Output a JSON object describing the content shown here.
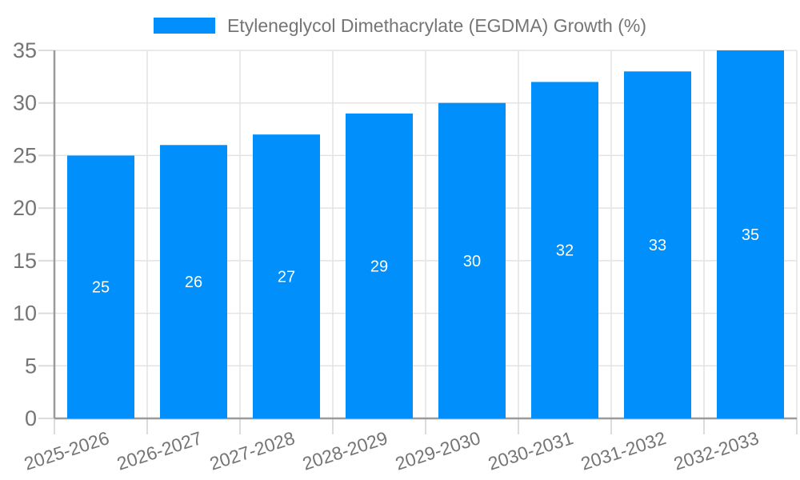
{
  "chart_data": {
    "type": "bar",
    "title": "",
    "legend": "Etyleneglycol Dimethacrylate (EGDMA) Growth (%)",
    "legend_position": "top-center",
    "categories": [
      "2025-2026",
      "2026-2027",
      "2027-2028",
      "2028-2029",
      "2029-2030",
      "2030-2031",
      "2031-2032",
      "2032-2033"
    ],
    "values": [
      25,
      26,
      27,
      29,
      30,
      32,
      33,
      35
    ],
    "xlabel": "",
    "ylabel": "",
    "ylim": [
      0,
      35
    ],
    "yticks": [
      0,
      5,
      10,
      15,
      20,
      25,
      30,
      35
    ],
    "grid": true,
    "x_label_rotation_deg": -18,
    "colors": {
      "bar": "#008ffb",
      "grid": "#e3e3e3",
      "tick": "#dcdcdc",
      "axis": "#9a9a9a",
      "label": "#757575",
      "value_label": "#ffffff",
      "background": "#ffffff"
    }
  }
}
